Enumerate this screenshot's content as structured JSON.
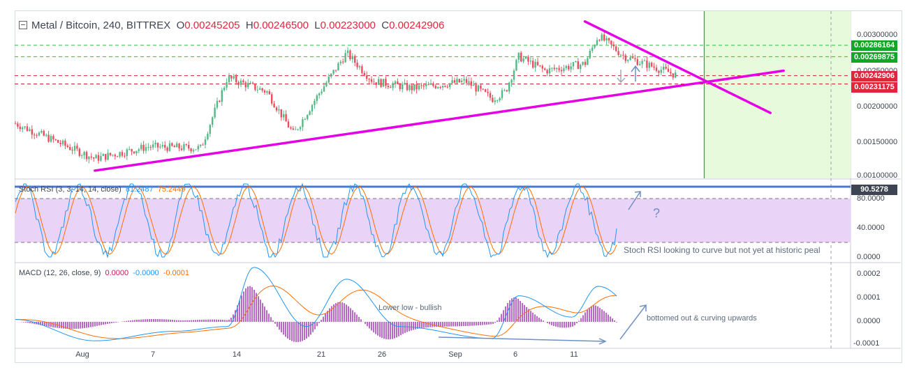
{
  "header": {
    "symbol": "Metal / Bitcoin, 240, BITTREX",
    "open_key": "O",
    "open": "0.00245205",
    "high_key": "H",
    "high": "0.00246500",
    "low_key": "L",
    "low": "0.00223000",
    "close_key": "C",
    "close": "0.00242906"
  },
  "stoch_legend": {
    "label": "Stoch RSI (3, 3, 14, 14, close)",
    "k": "81.2487",
    "d": "75.2449"
  },
  "macd_legend": {
    "label": "MACD (12, 26, close, 9)",
    "hist": "0.0000",
    "macd": "-0.0000",
    "signal": "-0.0001"
  },
  "price_axis": [
    "0.00300000",
    "0.00250000",
    "0.00200000",
    "0.00150000",
    "0.00100000"
  ],
  "price_tags": [
    {
      "text": "0.00286164",
      "color": "#13a628"
    },
    {
      "text": "0.00269875",
      "color": "#13a628"
    },
    {
      "text": "0.00242906",
      "color": "#e0263d"
    },
    {
      "text": "0.00231175",
      "color": "#e0263d"
    }
  ],
  "stoch_axis": [
    "80.0000",
    "40.0000",
    "0.0000"
  ],
  "stoch_tag": "90.5278",
  "macd_axis": [
    "0.0002",
    "0.0001",
    "0.0000",
    "-0.0001"
  ],
  "x_axis": [
    "Aug",
    "7",
    "14",
    "21",
    "26",
    "Sep",
    "6",
    "11"
  ],
  "annotations": {
    "stoch_note": "Stoch RSI looking to curve but not yet at historic peal",
    "question": "?",
    "lower_low": "Lower low - bullish",
    "bottomed": "bottomed out & curving upwards"
  },
  "colors": {
    "up": "#53b987",
    "down": "#eb4d5c",
    "trend": "#e600e6",
    "stoch_k": "#2196f3",
    "stoch_d": "#ff6d00",
    "macd": "#2196f3",
    "signal": "#ff6d00",
    "hist": "#9c27b0",
    "forecast": "#e8fadc",
    "annotation": "#6f8fc7"
  },
  "chart_data": [
    {
      "type": "candlestick",
      "title": "Metal / Bitcoin, 240, BITTREX",
      "ylim": [
        0.001,
        0.0033
      ],
      "x": [
        "Aug",
        "7",
        "14",
        "21",
        "26",
        "Sep",
        "6",
        "11"
      ],
      "anchors": [
        {
          "x": "Jul 26",
          "y": 0.00175
        },
        {
          "x": "Aug 1",
          "y": 0.00125
        },
        {
          "x": "Aug 5",
          "y": 0.00142
        },
        {
          "x": "Aug 9",
          "y": 0.0014
        },
        {
          "x": "Aug 11",
          "y": 0.0024
        },
        {
          "x": "Aug 14",
          "y": 0.0022
        },
        {
          "x": "Aug 16",
          "y": 0.0016
        },
        {
          "x": "Aug 18",
          "y": 0.0022
        },
        {
          "x": "Aug 20",
          "y": 0.00275
        },
        {
          "x": "Aug 22",
          "y": 0.00235
        },
        {
          "x": "Aug 25",
          "y": 0.00225
        },
        {
          "x": "Aug 29",
          "y": 0.00235
        },
        {
          "x": "Aug 31",
          "y": 0.0021
        },
        {
          "x": "Sep 1",
          "y": 0.0022
        },
        {
          "x": "Sep 2",
          "y": 0.0027
        },
        {
          "x": "Sep 4",
          "y": 0.0025
        },
        {
          "x": "Sep 7",
          "y": 0.0026
        },
        {
          "x": "Sep 8",
          "y": 0.003
        },
        {
          "x": "Sep 10",
          "y": 0.0027
        },
        {
          "x": "Sep 13",
          "y": 0.0025
        },
        {
          "x": "Sep 14",
          "y": 0.00243
        }
      ],
      "horizontal_levels": [
        {
          "value": 0.00286164,
          "style": "dashed",
          "color": "green"
        },
        {
          "value": 0.00269875,
          "style": "dashed",
          "color": "green"
        },
        {
          "value": 0.00242906,
          "style": "dashed",
          "color": "red"
        },
        {
          "value": 0.00231175,
          "style": "dashed",
          "color": "red"
        }
      ],
      "trendlines": [
        {
          "from": {
            "x": "Aug 1",
            "y": 0.00108
          },
          "to": {
            "x": "Sep 22",
            "y": 0.0025
          }
        },
        {
          "from": {
            "x": "Sep 7",
            "y": 0.0032
          },
          "to": {
            "x": "Sep 21",
            "y": 0.0019
          }
        }
      ]
    },
    {
      "type": "line",
      "title": "Stoch RSI (3, 3, 14, 14, close)",
      "ylim": [
        0,
        100
      ],
      "bands": [
        20,
        80
      ],
      "series": [
        {
          "name": "K",
          "last": 81.2487
        },
        {
          "name": "D",
          "last": 75.2449
        }
      ]
    },
    {
      "type": "line",
      "title": "MACD (12, 26, close, 9)",
      "ylim": [
        -0.0001,
        0.0002
      ],
      "anchors": [
        {
          "x": "Jul 26",
          "y": 1e-05
        },
        {
          "x": "Aug 1",
          "y": -8e-05
        },
        {
          "x": "Aug 7",
          "y": -4e-05
        },
        {
          "x": "Aug 11",
          "y": -2e-05
        },
        {
          "x": "Aug 13",
          "y": 0.00023
        },
        {
          "x": "Aug 17",
          "y": -2e-05
        },
        {
          "x": "Aug 20",
          "y": 0.00018
        },
        {
          "x": "Aug 24",
          "y": -2e-05
        },
        {
          "x": "Aug 31",
          "y": -7e-05
        },
        {
          "x": "Sep 2",
          "y": 0.00011
        },
        {
          "x": "Sep 6",
          "y": 2e-05
        },
        {
          "x": "Sep 8",
          "y": 0.00015
        },
        {
          "x": "Sep 13",
          "y": -8e-05
        },
        {
          "x": "Sep 14",
          "y": -4e-05
        }
      ],
      "series": [
        {
          "name": "Histogram",
          "last": 0.0
        },
        {
          "name": "MACD",
          "last": -0.0
        },
        {
          "name": "Signal",
          "last": -0.0001
        }
      ]
    }
  ]
}
